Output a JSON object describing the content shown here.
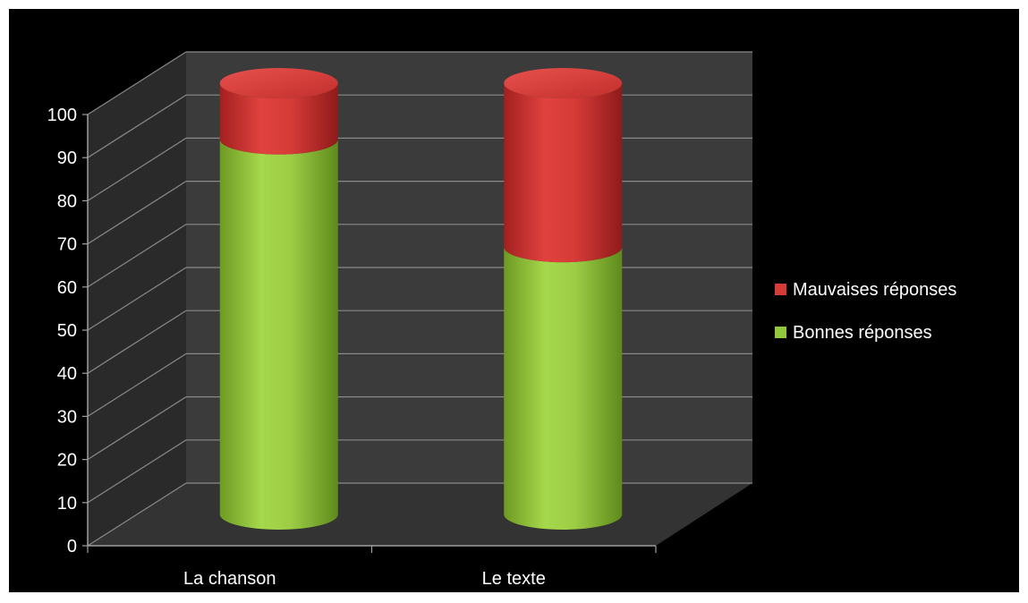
{
  "chart_data": {
    "type": "bar",
    "stacked": true,
    "three_d": true,
    "title": "",
    "xlabel": "",
    "ylabel": "",
    "categories": [
      "La chanson",
      "Le texte"
    ],
    "series": [
      {
        "name": "Bonnes réponses",
        "values": [
          87,
          62
        ],
        "color": "#92c83e"
      },
      {
        "name": "Mauvaises réponses",
        "values": [
          13,
          38
        ],
        "color": "#d63b38"
      }
    ],
    "ylim": [
      0,
      100
    ],
    "yticks": [
      "0",
      "10",
      "20",
      "30",
      "40",
      "50",
      "60",
      "70",
      "80",
      "90",
      "100"
    ],
    "grid": true,
    "legend_position": "right",
    "background": "#000000",
    "wall_color": "#3b3b3b",
    "floor_color": "#333333"
  }
}
